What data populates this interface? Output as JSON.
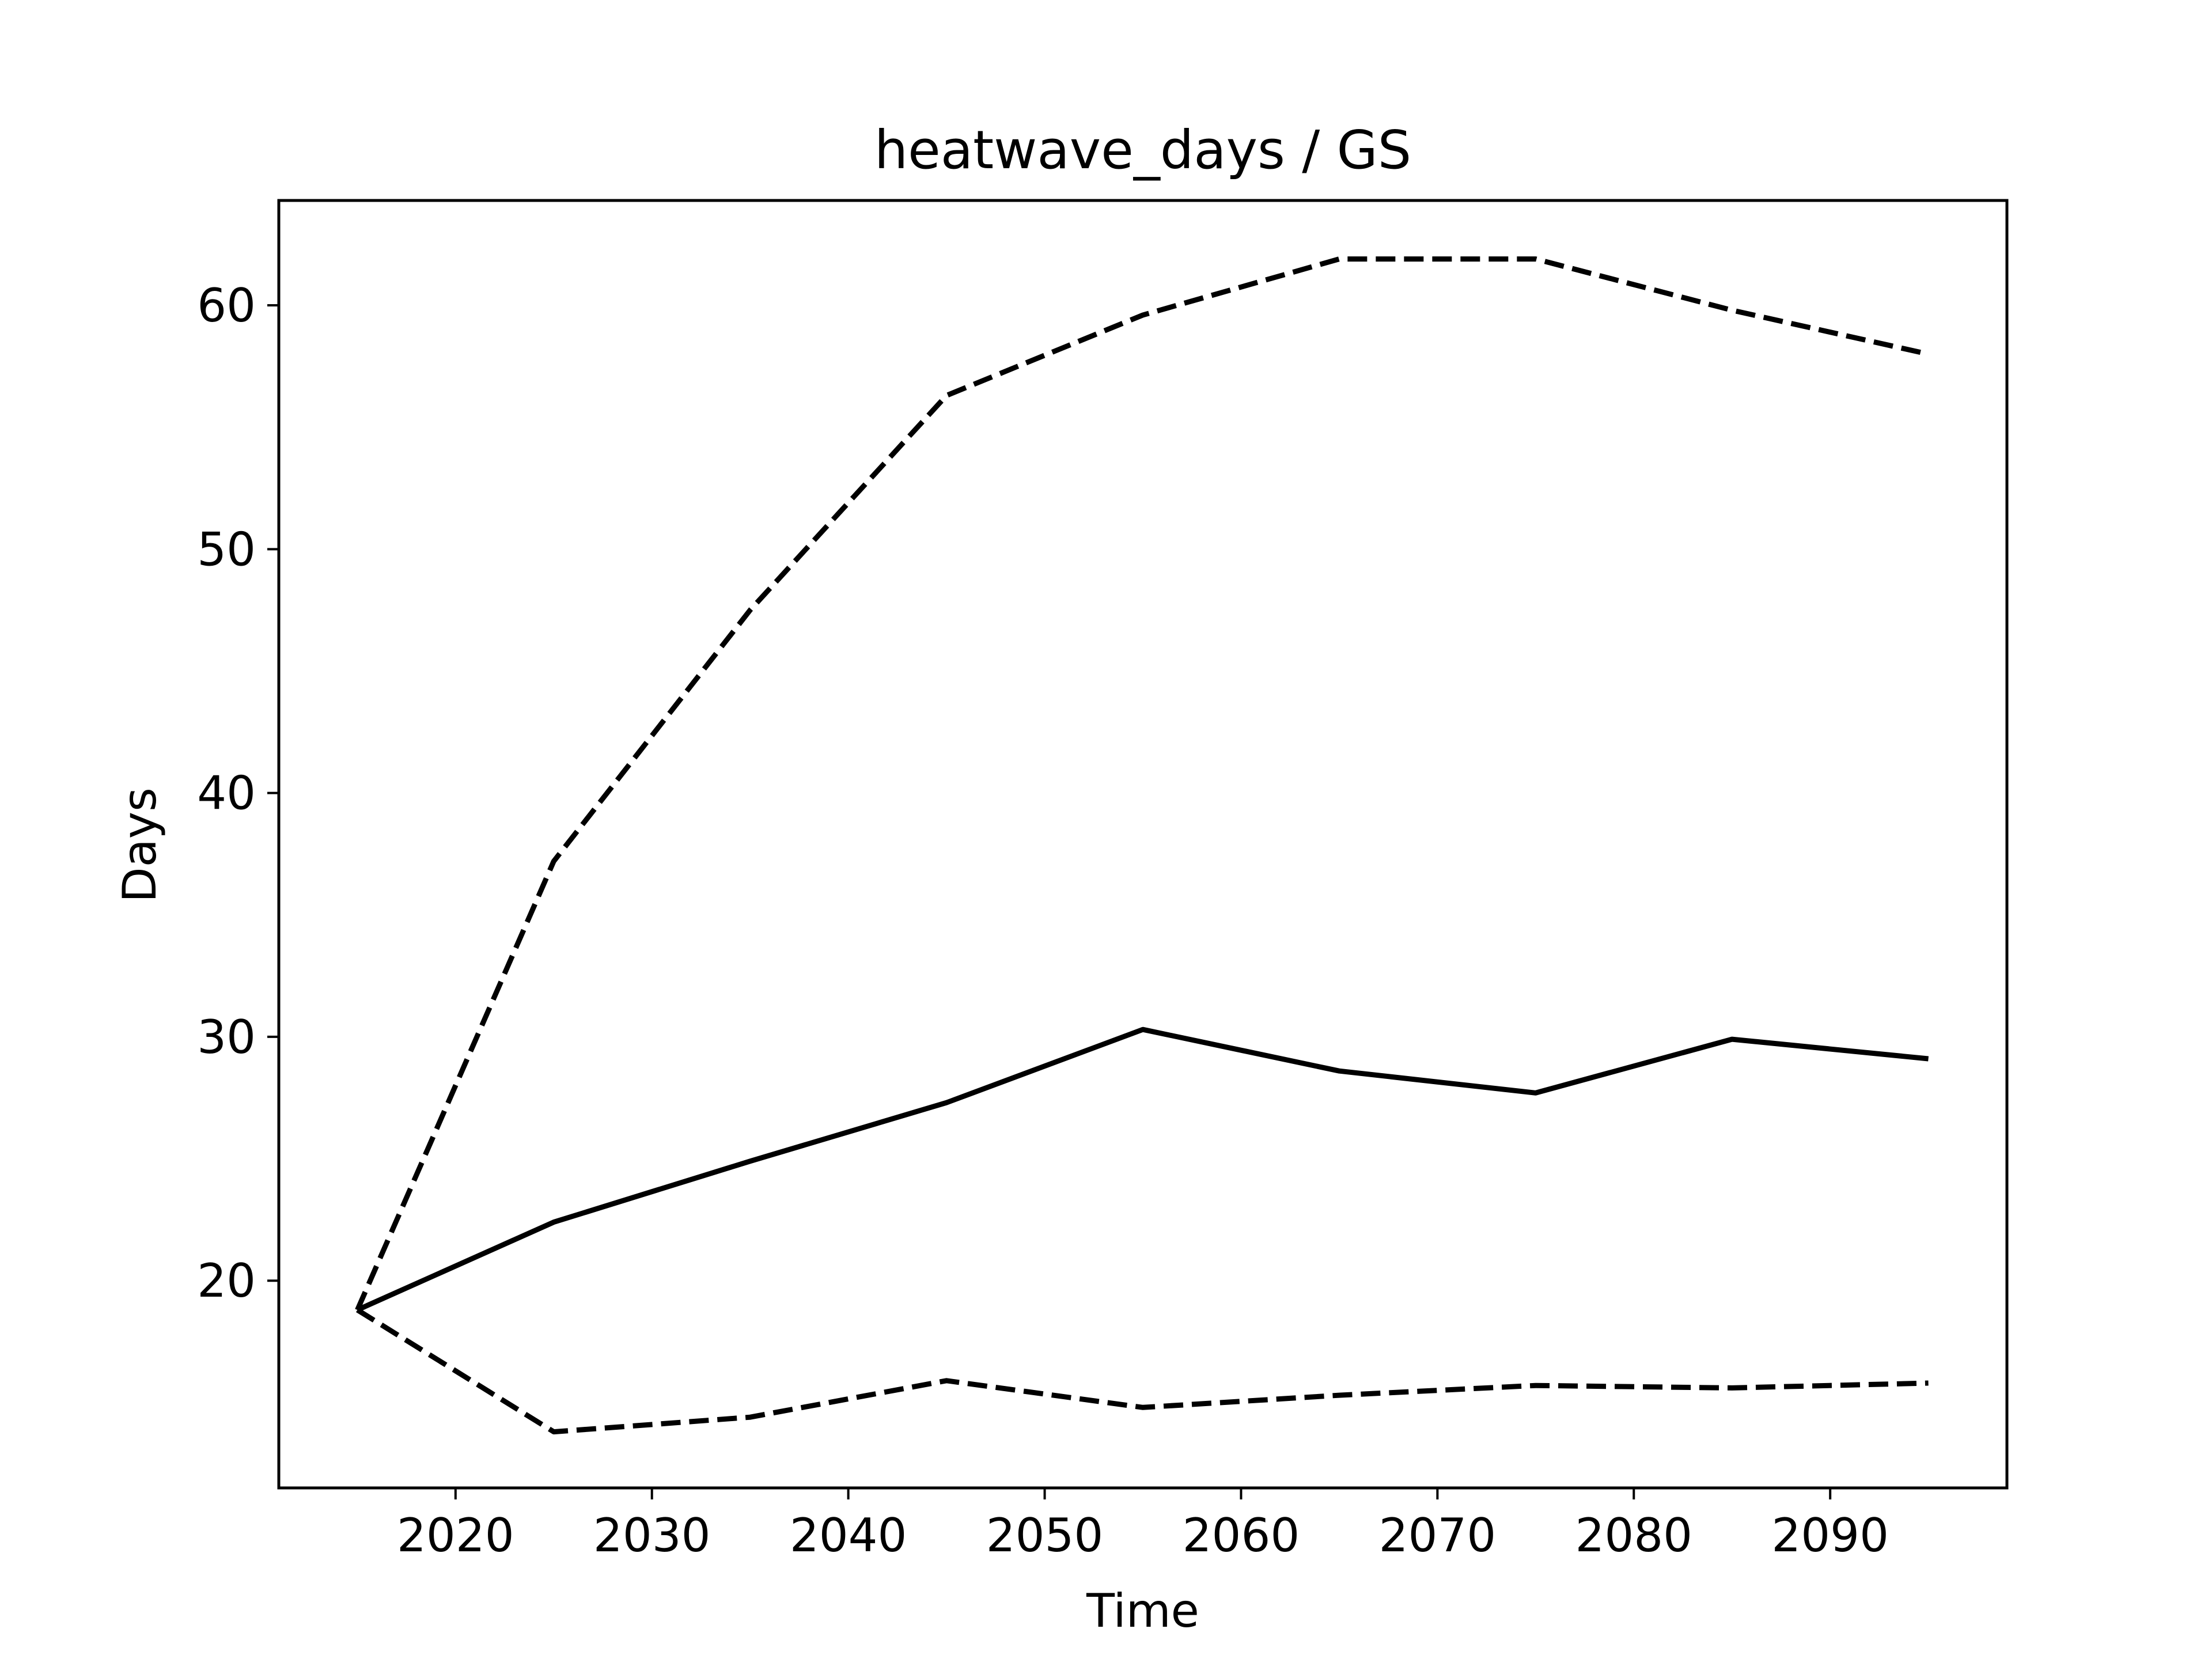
{
  "chart_data": {
    "type": "line",
    "title": "heatwave_days / GS",
    "xlabel": "Time",
    "ylabel": "Days",
    "xlim": [
      2011,
      2099
    ],
    "ylim": [
      11.5,
      64.3
    ],
    "grid": false,
    "xticks": [
      2020,
      2030,
      2040,
      2050,
      2060,
      2070,
      2080,
      2090
    ],
    "yticks": [
      20,
      30,
      40,
      50,
      60
    ],
    "x": [
      2015,
      2025,
      2035,
      2045,
      2055,
      2065,
      2075,
      2085,
      2095
    ],
    "series": [
      {
        "values": [
          18.8,
          22.4,
          24.9,
          27.3,
          30.3,
          28.6,
          27.7,
          29.9,
          29.1
        ],
        "style": "solid",
        "color": "#000000"
      },
      {
        "values": [
          18.8,
          37.2,
          47.5,
          56.3,
          59.6,
          61.9,
          61.9,
          59.8,
          58.0
        ],
        "style": "dashed",
        "color": "#000000"
      },
      {
        "values": [
          18.8,
          13.8,
          14.4,
          15.9,
          14.8,
          15.3,
          15.7,
          15.6,
          15.8
        ],
        "style": "dashed",
        "color": "#000000"
      }
    ]
  }
}
